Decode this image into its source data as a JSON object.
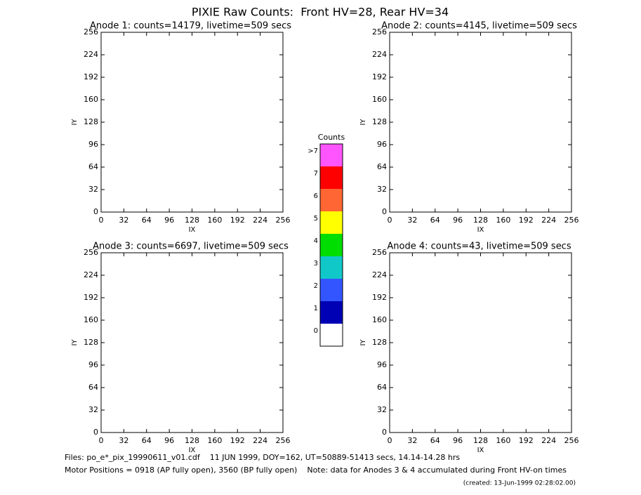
{
  "title": "PIXIE Raw Counts:  Front HV=28, Rear HV=34",
  "chart_data": [
    {
      "type": "heatmap",
      "title": "Anode 1: counts=14179, livetime=509 secs",
      "xlabel": "IX",
      "ylabel": "IY",
      "xlim": [
        0,
        256
      ],
      "ylim": [
        0,
        256
      ],
      "xticks": [
        0,
        32,
        64,
        96,
        128,
        160,
        192,
        224,
        256
      ],
      "yticks": [
        0,
        32,
        64,
        96,
        128,
        160,
        192,
        224,
        256
      ]
    },
    {
      "type": "heatmap",
      "title": "Anode 2: counts=4145, livetime=509 secs",
      "xlabel": "IX",
      "ylabel": "IY",
      "xlim": [
        0,
        256
      ],
      "ylim": [
        0,
        256
      ],
      "xticks": [
        0,
        32,
        64,
        96,
        128,
        160,
        192,
        224,
        256
      ],
      "yticks": [
        0,
        32,
        64,
        96,
        128,
        160,
        192,
        224,
        256
      ]
    },
    {
      "type": "heatmap",
      "title": "Anode 3: counts=6697, livetime=509 secs",
      "xlabel": "IX",
      "ylabel": "IY",
      "xlim": [
        0,
        256
      ],
      "ylim": [
        0,
        256
      ],
      "xticks": [
        0,
        32,
        64,
        96,
        128,
        160,
        192,
        224,
        256
      ],
      "yticks": [
        0,
        32,
        64,
        96,
        128,
        160,
        192,
        224,
        256
      ]
    },
    {
      "type": "heatmap",
      "title": "Anode 4: counts=43, livetime=509 secs",
      "xlabel": "IX",
      "ylabel": "IY",
      "xlim": [
        0,
        256
      ],
      "ylim": [
        0,
        256
      ],
      "xticks": [
        0,
        32,
        64,
        96,
        128,
        160,
        192,
        224,
        256
      ],
      "yticks": [
        0,
        32,
        64,
        96,
        128,
        160,
        192,
        224,
        256
      ]
    }
  ],
  "colorbar": {
    "title": "Counts",
    "labels": [
      "0",
      "1",
      "2",
      "3",
      "4",
      "5",
      "6",
      "7",
      ">7"
    ],
    "colors": [
      "#ffffff",
      "#0000b4",
      "#3355ff",
      "#11c8c8",
      "#00dd00",
      "#ffff00",
      "#ff6633",
      "#ff0000",
      "#ff55ff"
    ]
  },
  "footer": {
    "files": "Files: po_e*_pix_19990611_v01.cdf    11 JUN 1999, DOY=162, UT=50889-51413 secs, 14.14-14.28 hrs",
    "motor": "Motor Positions = 0918 (AP fully open), 3560 (BP fully open)    Note: data for Anodes 3 & 4 accumulated during Front HV-on times",
    "created": "(created: 13-Jun-1999 02:28:02.00)"
  }
}
